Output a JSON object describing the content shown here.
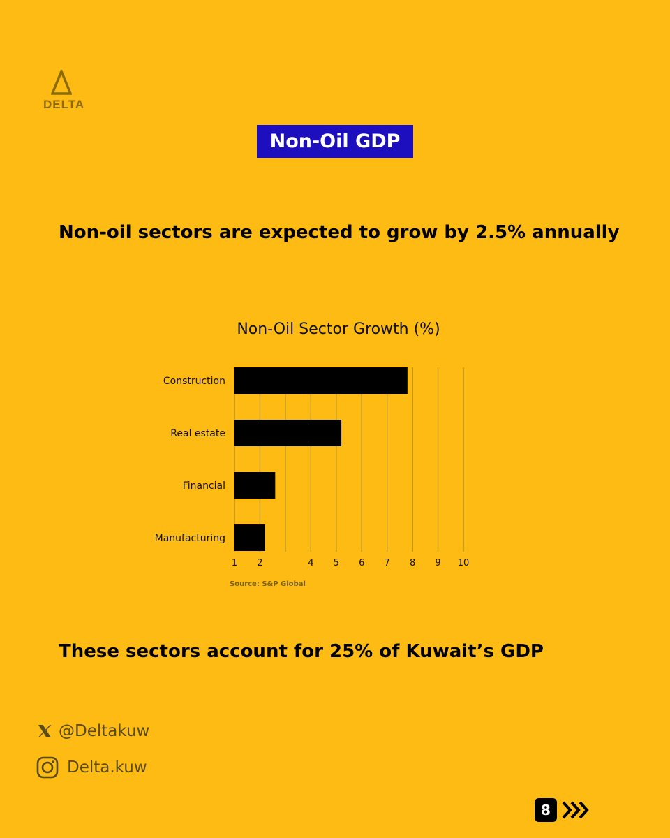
{
  "brand": {
    "logo_text": "DELTA",
    "logo_color": "#8C6A07"
  },
  "header": {
    "title": "Non-Oil GDP",
    "title_bg": "#1D0FBE"
  },
  "headline": "Non-oil sectors are expected to grow by 2.5% annually",
  "footline": "These sectors account for 25% of Kuwait’s GDP",
  "chart_data": {
    "type": "bar",
    "orientation": "horizontal",
    "title": "Non-Oil Sector Growth (%)",
    "categories": [
      "Construction",
      "Real estate",
      "Financial",
      "Manufacturing"
    ],
    "values": [
      7.8,
      5.2,
      2.6,
      2.2
    ],
    "xlim": [
      1,
      10
    ],
    "xticks": [
      "1",
      "2",
      "4",
      "5",
      "6",
      "7",
      "8",
      "9",
      "10"
    ],
    "grid": true,
    "source": "Source: S&P Global",
    "bar_color": "#000000",
    "background": "#FDBB13"
  },
  "social": {
    "x_handle": "@Deltakuw",
    "instagram_handle": "Delta.kuw"
  },
  "pagination": {
    "page_number": "8"
  }
}
